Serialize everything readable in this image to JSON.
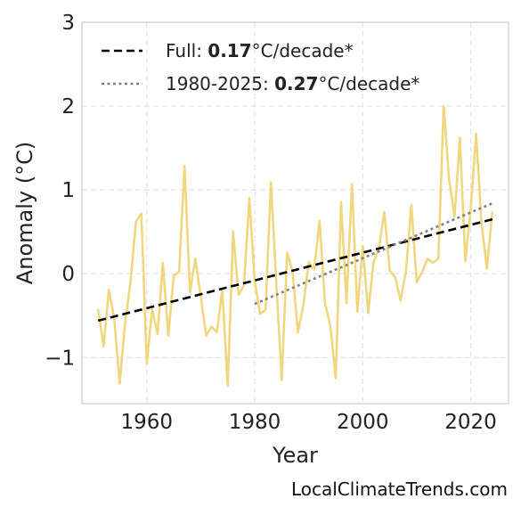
{
  "chart_data": {
    "type": "line",
    "xlabel": "Year",
    "ylabel": "Anomaly (°C)",
    "xlim": [
      1948,
      2027
    ],
    "ylim": [
      -1.55,
      3
    ],
    "x_ticks": [
      1960,
      1980,
      2000,
      2020
    ],
    "y_ticks": [
      -1,
      0,
      1,
      2,
      3
    ],
    "y_tick_labels": [
      "−1",
      "0",
      "1",
      "2",
      "3"
    ],
    "grid": true,
    "legend_position": "top-left",
    "series": [
      {
        "color": "#f0d77e",
        "style": "solid",
        "x": [
          1951,
          1952,
          1953,
          1954,
          1955,
          1956,
          1957,
          1958,
          1959,
          1960,
          1961,
          1962,
          1963,
          1964,
          1965,
          1966,
          1967,
          1968,
          1969,
          1970,
          1971,
          1972,
          1973,
          1974,
          1975,
          1976,
          1977,
          1978,
          1979,
          1980,
          1981,
          1982,
          1983,
          1984,
          1985,
          1986,
          1987,
          1988,
          1989,
          1990,
          1991,
          1992,
          1993,
          1994,
          1995,
          1996,
          1997,
          1998,
          1999,
          2000,
          2001,
          2002,
          2003,
          2004,
          2005,
          2006,
          2007,
          2008,
          2009,
          2010,
          2011,
          2012,
          2013,
          2014,
          2015,
          2016,
          2017,
          2018,
          2019,
          2020,
          2021,
          2022,
          2023,
          2024
        ],
        "values": [
          -0.42,
          -0.87,
          -0.19,
          -0.55,
          -1.31,
          -0.58,
          -0.1,
          0.62,
          0.72,
          -1.07,
          -0.42,
          -0.72,
          0.13,
          -0.74,
          -0.02,
          0.02,
          1.29,
          -0.22,
          0.18,
          -0.27,
          -0.74,
          -0.63,
          -0.7,
          -0.19,
          -1.34,
          0.5,
          -0.25,
          -0.14,
          0.9,
          -0.09,
          -0.48,
          -0.43,
          1.09,
          -0.12,
          -1.27,
          0.25,
          0.03,
          -0.7,
          -0.38,
          0.14,
          0.05,
          0.63,
          -0.34,
          -0.62,
          -1.25,
          0.85,
          -0.35,
          1.07,
          -0.45,
          0.33,
          -0.47,
          0.13,
          0.31,
          0.74,
          0.04,
          -0.04,
          -0.32,
          0.02,
          0.82,
          -0.1,
          0.02,
          0.18,
          0.13,
          0.18,
          2.0,
          1.12,
          0.68,
          1.62,
          0.15,
          0.78,
          1.67,
          0.6,
          0.06,
          0.74
        ]
      },
      {
        "color": "#000000",
        "style": "dashed",
        "x": [
          1951,
          2024
        ],
        "values": [
          -0.56,
          0.65
        ]
      },
      {
        "color": "#808080",
        "style": "dotted",
        "x": [
          1980,
          2024
        ],
        "values": [
          -0.36,
          0.84
        ]
      }
    ],
    "legend": [
      {
        "prefix": "Full: ",
        "value": "0.17",
        "suffix": "°C/decade*",
        "style": "dashed",
        "color": "#000000"
      },
      {
        "prefix": "1980-2025: ",
        "value": "0.27",
        "suffix": "°C/decade*",
        "style": "dotted",
        "color": "#808080"
      }
    ]
  },
  "watermark": "LocalClimateTrends.com"
}
